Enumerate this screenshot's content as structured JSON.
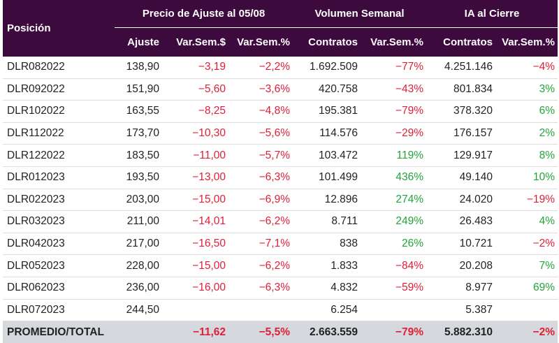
{
  "colors": {
    "header_bg": "#3d0a3d",
    "negative": "#e01e37",
    "positive": "#22a33a",
    "total_bg": "#d5d8dc"
  },
  "header": {
    "position": "Posición",
    "group_price": "Precio de Ajuste al 05/08",
    "group_volume": "Volumen Semanal",
    "group_oi": "IA al Cierre",
    "col_ajuste": "Ajuste",
    "col_var_pesos": "Var.Sem.$",
    "col_var_pct": "Var.Sem.%",
    "col_vol_contratos": "Contratos",
    "col_vol_var": "Var.Sem.%",
    "col_oi_contratos": "Contratos",
    "col_oi_var": "Var.Sem.%"
  },
  "rows": [
    {
      "pos": "DLR082022",
      "ajuste": "138,90",
      "var_pesos": "−3,19",
      "var_pct": "−2,2%",
      "vol": "1.692.509",
      "vol_var": "−77%",
      "oi": "4.251.146",
      "oi_var": "−4%"
    },
    {
      "pos": "DLR092022",
      "ajuste": "151,90",
      "var_pesos": "−5,60",
      "var_pct": "−3,6%",
      "vol": "420.758",
      "vol_var": "−43%",
      "oi": "801.834",
      "oi_var": "3%"
    },
    {
      "pos": "DLR102022",
      "ajuste": "163,55",
      "var_pesos": "−8,25",
      "var_pct": "−4,8%",
      "vol": "195.381",
      "vol_var": "−79%",
      "oi": "378.320",
      "oi_var": "6%"
    },
    {
      "pos": "DLR112022",
      "ajuste": "173,70",
      "var_pesos": "−10,30",
      "var_pct": "−5,6%",
      "vol": "114.576",
      "vol_var": "−29%",
      "oi": "176.157",
      "oi_var": "2%"
    },
    {
      "pos": "DLR122022",
      "ajuste": "183,50",
      "var_pesos": "−11,00",
      "var_pct": "−5,7%",
      "vol": "103.472",
      "vol_var": "119%",
      "oi": "129.917",
      "oi_var": "8%"
    },
    {
      "pos": "DLR012023",
      "ajuste": "193,50",
      "var_pesos": "−13,00",
      "var_pct": "−6,3%",
      "vol": "101.499",
      "vol_var": "436%",
      "oi": "49.140",
      "oi_var": "10%"
    },
    {
      "pos": "DLR022023",
      "ajuste": "203,00",
      "var_pesos": "−15,00",
      "var_pct": "−6,9%",
      "vol": "12.896",
      "vol_var": "274%",
      "oi": "24.020",
      "oi_var": "−19%"
    },
    {
      "pos": "DLR032023",
      "ajuste": "211,00",
      "var_pesos": "−14,01",
      "var_pct": "−6,2%",
      "vol": "8.711",
      "vol_var": "249%",
      "oi": "26.483",
      "oi_var": "4%"
    },
    {
      "pos": "DLR042023",
      "ajuste": "217,00",
      "var_pesos": "−16,50",
      "var_pct": "−7,1%",
      "vol": "838",
      "vol_var": "26%",
      "oi": "10.721",
      "oi_var": "−2%"
    },
    {
      "pos": "DLR052023",
      "ajuste": "228,00",
      "var_pesos": "−15,00",
      "var_pct": "−6,2%",
      "vol": "1.833",
      "vol_var": "−84%",
      "oi": "20.208",
      "oi_var": "7%"
    },
    {
      "pos": "DLR062023",
      "ajuste": "236,00",
      "var_pesos": "−16,00",
      "var_pct": "−6,3%",
      "vol": "4.832",
      "vol_var": "−59%",
      "oi": "8.977",
      "oi_var": "69%"
    },
    {
      "pos": "DLR072023",
      "ajuste": "244,50",
      "var_pesos": "",
      "var_pct": "",
      "vol": "6.254",
      "vol_var": "",
      "oi": "5.387",
      "oi_var": ""
    }
  ],
  "total": {
    "label": "PROMEDIO/TOTAL",
    "var_pesos": "−11,62",
    "var_pct": "−5,5%",
    "vol": "2.663.559",
    "vol_var": "−79%",
    "oi": "5.882.310",
    "oi_var": "−2%"
  }
}
